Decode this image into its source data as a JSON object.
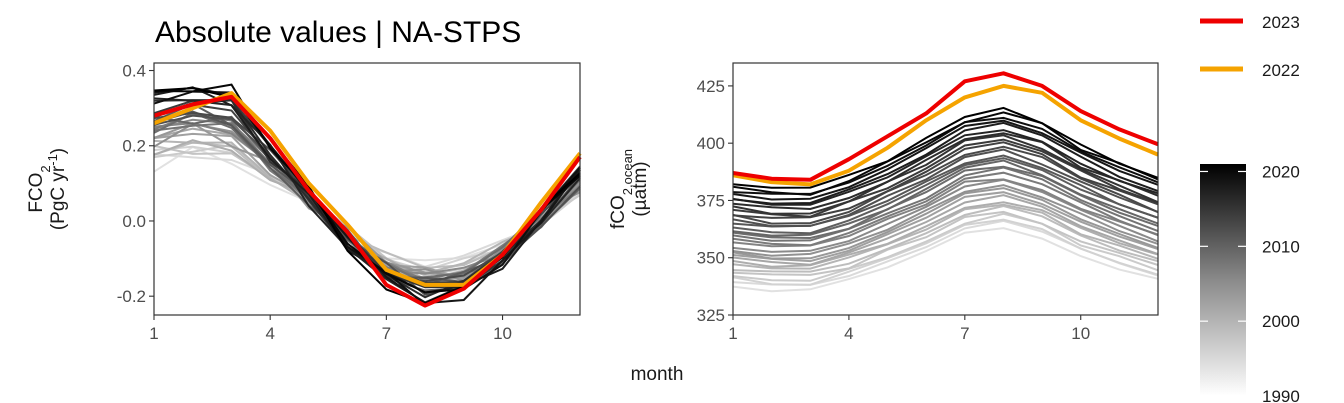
{
  "title": "Absolute values | NA-STPS",
  "xlabel": "month",
  "legend": {
    "items": [
      {
        "label": "2023",
        "color": "#ee0000"
      },
      {
        "label": "2022",
        "color": "#f5a300"
      }
    ],
    "colorbar": {
      "ticks": [
        "2020",
        "2010",
        "2000",
        "1990"
      ],
      "range": [
        1990,
        2021
      ]
    }
  },
  "chart_data": [
    {
      "type": "line",
      "panel": "left",
      "ylabel": "FCO2 (PgC yr-1)",
      "ylabel_main": "FCO",
      "ylabel_sub": "2",
      "ylabel_unit": "(PgC yr",
      "ylabel_unit_sup": "-1",
      "ylabel_unit_close": ")",
      "xlim": [
        1,
        12
      ],
      "ylim": [
        -0.25,
        0.42
      ],
      "xticks": [
        "1",
        "4",
        "7",
        "10"
      ],
      "yticks": [
        "0.4",
        "0.2",
        "0.0",
        "-0.2"
      ],
      "x": [
        1,
        2,
        3,
        4,
        5,
        6,
        7,
        8,
        9,
        10,
        11,
        12
      ],
      "series": [
        {
          "name": "2023",
          "color": "#ee0000",
          "values": [
            0.28,
            0.31,
            0.33,
            0.22,
            0.08,
            -0.03,
            -0.17,
            -0.225,
            -0.18,
            -0.09,
            0.03,
            0.17
          ]
        },
        {
          "name": "2022",
          "color": "#f5a300",
          "values": [
            0.26,
            0.3,
            0.34,
            0.24,
            0.1,
            -0.01,
            -0.13,
            -0.17,
            -0.17,
            -0.09,
            0.05,
            0.18
          ]
        }
      ],
      "background_years": [
        1990,
        2021
      ]
    },
    {
      "type": "line",
      "panel": "right",
      "ylabel": "fCO2,ocean (µatm)",
      "ylabel_main": "fCO",
      "ylabel_sub": "2,ocean",
      "ylabel_unit": "(µatm)",
      "xlim": [
        1,
        12
      ],
      "ylim": [
        325,
        435
      ],
      "xticks": [
        "1",
        "4",
        "7",
        "10"
      ],
      "yticks": [
        "425",
        "400",
        "375",
        "350",
        "325"
      ],
      "x": [
        1,
        2,
        3,
        4,
        5,
        6,
        7,
        8,
        9,
        10,
        11,
        12
      ],
      "series": [
        {
          "name": "2023",
          "color": "#ee0000",
          "values": [
            387,
            384.5,
            384,
            393,
            403,
            413,
            427,
            430.5,
            425,
            414,
            406,
            399.5
          ]
        },
        {
          "name": "2022",
          "color": "#f5a300",
          "values": [
            386,
            383,
            382,
            388,
            398,
            410,
            420,
            425,
            422,
            410,
            402,
            395
          ]
        }
      ],
      "background_years": [
        1990,
        2021
      ]
    }
  ]
}
